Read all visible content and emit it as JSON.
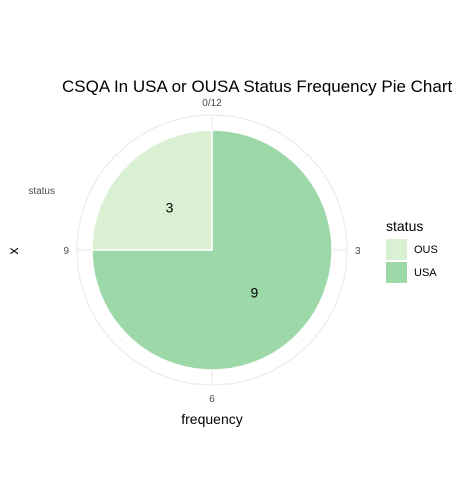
{
  "chart_data": {
    "type": "pie",
    "title": "CSQA In USA or OUSA Status Frequency Pie Chart",
    "xlabel": "frequency",
    "ylabel": "x",
    "y_tick_label": "status",
    "angular_ticks": [
      "0/12",
      "3",
      "6",
      "9"
    ],
    "total": 12,
    "categories": [
      "OUS",
      "USA"
    ],
    "values": [
      3,
      9
    ],
    "colors": [
      "#d9f0d3",
      "#9dd8a8"
    ],
    "legend": {
      "title": "status",
      "position": "right"
    },
    "grid": true
  }
}
